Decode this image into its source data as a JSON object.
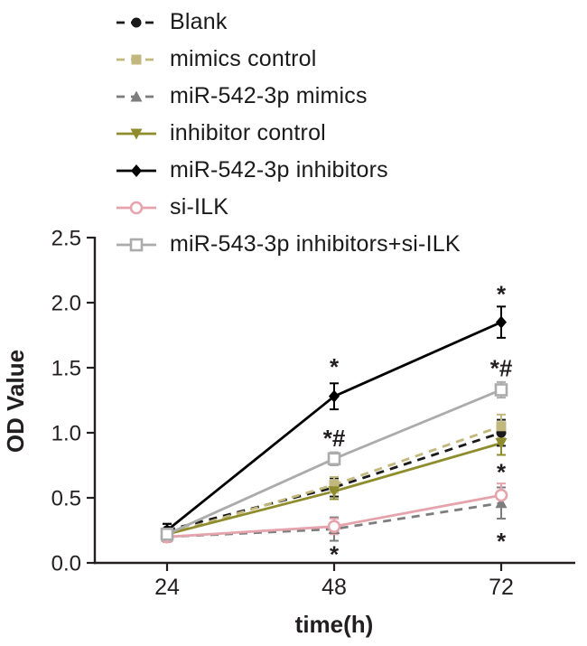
{
  "chart_data": {
    "type": "line",
    "title": "",
    "xlabel": "time(h)",
    "ylabel": "OD Value",
    "x": [
      24,
      48,
      72
    ],
    "xtick_labels": [
      "24",
      "48",
      "72"
    ],
    "ylim": [
      0,
      2.5
    ],
    "yticks": [
      0,
      0.5,
      1,
      1.5,
      2,
      2.5
    ],
    "ytick_labels": [
      "0.0",
      "0.5",
      "1.0",
      "1.5",
      "2.0",
      "2.5"
    ],
    "axis_color": "#231f20",
    "grid": false,
    "legend_position": "top-left",
    "series": [
      {
        "name": "Blank",
        "color": "#1a1a1a",
        "line": "dashed",
        "marker": "circle-filled",
        "values": [
          0.25,
          0.58,
          1.0
        ],
        "errors": [
          0.05,
          0.07,
          0.1
        ]
      },
      {
        "name": "mimics control",
        "color": "#c2b87e",
        "line": "dashed",
        "marker": "square-filled",
        "values": [
          0.22,
          0.6,
          1.05
        ],
        "errors": [
          0.04,
          0.06,
          0.09
        ]
      },
      {
        "name": "miR-542-3p mimics",
        "color": "#7d7d7d",
        "line": "dashed",
        "marker": "triangle-up-filled",
        "values": [
          0.2,
          0.26,
          0.46
        ],
        "errors": [
          0.04,
          0.09,
          0.12
        ]
      },
      {
        "name": "inhibitor control",
        "color": "#8f8c2d",
        "line": "solid",
        "marker": "triangle-down-filled",
        "values": [
          0.22,
          0.55,
          0.92
        ],
        "errors": [
          0.04,
          0.06,
          0.09
        ]
      },
      {
        "name": "miR-542-3p inhibitors",
        "color": "#000000",
        "line": "solid",
        "marker": "diamond-filled",
        "values": [
          0.25,
          1.28,
          1.85
        ],
        "errors": [
          0.05,
          0.1,
          0.12
        ]
      },
      {
        "name": "si-ILK",
        "color": "#e5a3ab",
        "line": "solid",
        "marker": "circle-open",
        "values": [
          0.2,
          0.28,
          0.52
        ],
        "errors": [
          0.04,
          0.06,
          0.09
        ]
      },
      {
        "name": "miR-543-3p inhibitors+si-ILK",
        "color": "#ababab",
        "line": "solid",
        "marker": "square-open",
        "values": [
          0.22,
          0.8,
          1.33
        ],
        "errors": [
          0.04,
          0.05,
          0.06
        ]
      }
    ],
    "annotations": [
      {
        "text": "*",
        "x": 48,
        "y": 1.5
      },
      {
        "text": "*#",
        "x": 48,
        "y": 0.95
      },
      {
        "text": "*",
        "x": 48,
        "y": 0.06
      },
      {
        "text": "*",
        "x": 72,
        "y": 2.06
      },
      {
        "text": "*#",
        "x": 72,
        "y": 1.49
      },
      {
        "text": "*",
        "x": 72,
        "y": 0.69
      },
      {
        "text": "*",
        "x": 72,
        "y": 0.16
      }
    ]
  }
}
